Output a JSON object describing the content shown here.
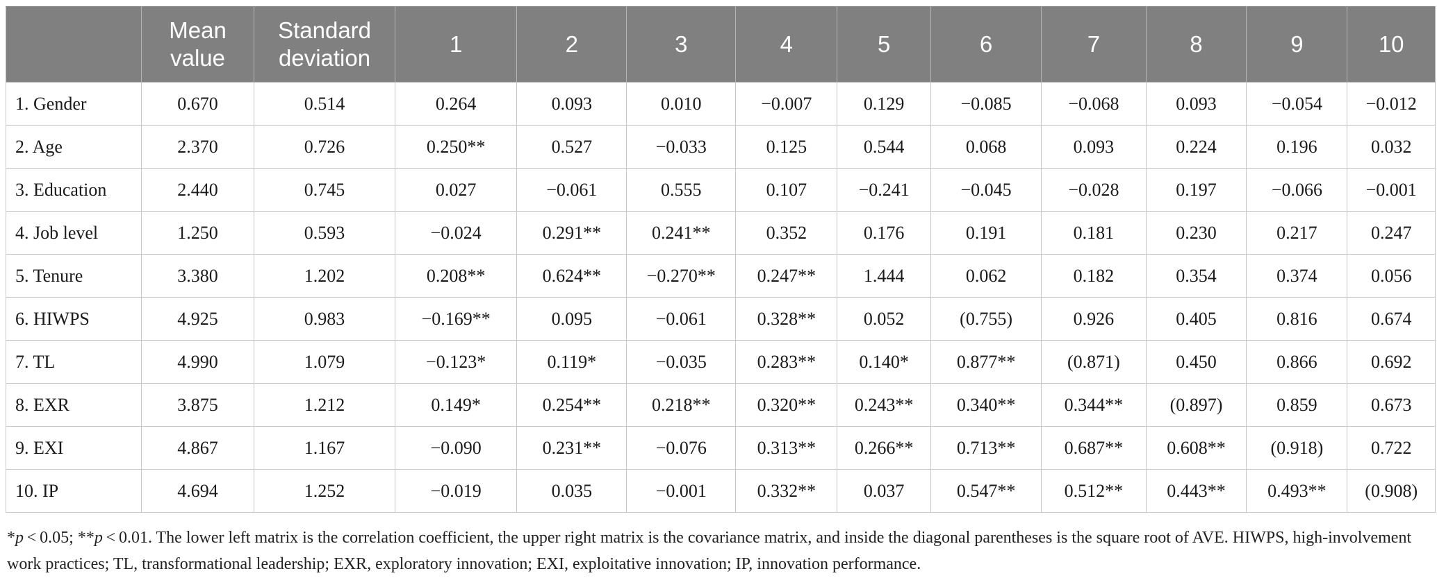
{
  "table": {
    "headers": [
      "",
      "Mean value",
      "Standard deviation",
      "1",
      "2",
      "3",
      "4",
      "5",
      "6",
      "7",
      "8",
      "9",
      "10"
    ],
    "rows": [
      [
        "1. Gender",
        "0.670",
        "0.514",
        "0.264",
        "0.093",
        "0.010",
        "−0.007",
        "0.129",
        "−0.085",
        "−0.068",
        "0.093",
        "−0.054",
        "−0.012"
      ],
      [
        "2. Age",
        "2.370",
        "0.726",
        "0.250**",
        "0.527",
        "−0.033",
        "0.125",
        "0.544",
        "0.068",
        "0.093",
        "0.224",
        "0.196",
        "0.032"
      ],
      [
        "3. Education",
        "2.440",
        "0.745",
        "0.027",
        "−0.061",
        "0.555",
        "0.107",
        "−0.241",
        "−0.045",
        "−0.028",
        "0.197",
        "−0.066",
        "−0.001"
      ],
      [
        "4. Job level",
        "1.250",
        "0.593",
        "−0.024",
        "0.291**",
        "0.241**",
        "0.352",
        "0.176",
        "0.191",
        "0.181",
        "0.230",
        "0.217",
        "0.247"
      ],
      [
        "5. Tenure",
        "3.380",
        "1.202",
        "0.208**",
        "0.624**",
        "−0.270**",
        "0.247**",
        "1.444",
        "0.062",
        "0.182",
        "0.354",
        "0.374",
        "0.056"
      ],
      [
        "6. HIWPS",
        "4.925",
        "0.983",
        "−0.169**",
        "0.095",
        "−0.061",
        "0.328**",
        "0.052",
        "(0.755)",
        "0.926",
        "0.405",
        "0.816",
        "0.674"
      ],
      [
        "7. TL",
        "4.990",
        "1.079",
        "−0.123*",
        "0.119*",
        "−0.035",
        "0.283**",
        "0.140*",
        "0.877**",
        "(0.871)",
        "0.450",
        "0.866",
        "0.692"
      ],
      [
        "8. EXR",
        "3.875",
        "1.212",
        "0.149*",
        "0.254**",
        "0.218**",
        "0.320**",
        "0.243**",
        "0.340**",
        "0.344**",
        "(0.897)",
        "0.859",
        "0.673"
      ],
      [
        "9. EXI",
        "4.867",
        "1.167",
        "−0.090",
        "0.231**",
        "−0.076",
        "0.313**",
        "0.266**",
        "0.713**",
        "0.687**",
        "0.608**",
        "(0.918)",
        "0.722"
      ],
      [
        "10. IP",
        "4.694",
        "1.252",
        "−0.019",
        "0.035",
        "−0.001",
        "0.332**",
        "0.037",
        "0.547**",
        "0.512**",
        "0.443**",
        "0.493**",
        "(0.908)"
      ]
    ]
  },
  "note": {
    "sig1_prefix": "*",
    "sig1_p": "p",
    "sig1_rest": " < 0.05; **",
    "sig2_p": "p",
    "sig2_rest": " < 0.01. The lower left matrix is the correlation coefficient, the upper right matrix is the covariance matrix, and inside the diagonal parentheses is the square root of AVE. HIWPS, high-involvement work practices; TL, transformational leadership; EXR, exploratory innovation; EXI, exploitative innovation; IP, innovation performance."
  }
}
